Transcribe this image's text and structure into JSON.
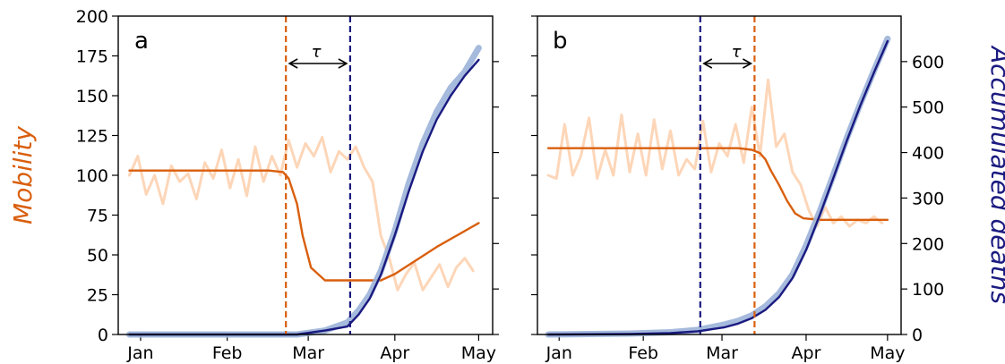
{
  "colors": {
    "mobility_raw": "#fdd2b0",
    "mobility_fit": "#d95f0e",
    "deaths_raw": "#9bb2d8",
    "deaths_fit": "#1a1a80",
    "tau_arrow": "#000000",
    "axis": "#000000"
  },
  "y_left_label": "Mobility",
  "y_right_label": "Accumulated deaths",
  "chart_data": [
    {
      "type": "line",
      "panel": "a",
      "panel_label": "a",
      "tau_label": "τ",
      "x_ticks": [
        "Jan",
        "Feb",
        "Mar",
        "Apr",
        "May"
      ],
      "xlim": [
        "Jan",
        "May"
      ],
      "ylim_mobility": [
        0,
        200
      ],
      "yticks_mobility": [
        0,
        25,
        50,
        75,
        100,
        125,
        150,
        175,
        200
      ],
      "mobility_change_date": "Feb 26",
      "deaths_onset_date": "Mar 21",
      "series": [
        {
          "name": "Mobility (data)",
          "axis": "left",
          "x": [
            0,
            3,
            6,
            9,
            12,
            15,
            18,
            21,
            24,
            27,
            30,
            33,
            36,
            39,
            42,
            45,
            48,
            51,
            54,
            57,
            60,
            63,
            66,
            69,
            72,
            75,
            78,
            81,
            84,
            87,
            90,
            93,
            96,
            99,
            102,
            105,
            108,
            111,
            114,
            117,
            120,
            123
          ],
          "values": [
            100,
            112,
            88,
            100,
            82,
            106,
            96,
            101,
            85,
            108,
            98,
            116,
            92,
            110,
            87,
            118,
            96,
            112,
            100,
            122,
            105,
            120,
            112,
            124,
            102,
            115,
            110,
            118,
            105,
            96,
            62,
            48,
            28,
            38,
            45,
            28,
            36,
            44,
            30,
            42,
            48,
            40
          ]
        },
        {
          "name": "Mobility (fit)",
          "axis": "left",
          "x": [
            0,
            40,
            50,
            55,
            57,
            60,
            62,
            65,
            70,
            80,
            90,
            95,
            110,
            125
          ],
          "values": [
            103,
            103,
            103,
            102,
            98,
            82,
            62,
            42,
            34,
            34,
            34,
            38,
            55,
            70
          ]
        },
        {
          "name": "Accumulated deaths (data)",
          "axis": "right",
          "x": [
            0,
            60,
            70,
            78,
            82,
            86,
            90,
            95,
            100,
            105,
            110,
            115,
            120,
            125
          ],
          "values": [
            0,
            0,
            1,
            3,
            6,
            10,
            16,
            26,
            38,
            48,
            56,
            62,
            66,
            72
          ]
        },
        {
          "name": "Accumulated deaths (fit)",
          "axis": "right",
          "x": [
            0,
            60,
            70,
            78,
            82,
            86,
            90,
            95,
            100,
            105,
            110,
            115,
            120,
            125
          ],
          "values": [
            0,
            0,
            1,
            2,
            5,
            9,
            15,
            25,
            36,
            46,
            54,
            60,
            65,
            69
          ]
        }
      ]
    },
    {
      "type": "line",
      "panel": "b",
      "panel_label": "b",
      "tau_label": "τ",
      "x_ticks": [
        "Jan",
        "Feb",
        "Mar",
        "Apr",
        "May"
      ],
      "xlim": [
        "Jan",
        "May"
      ],
      "ylim_deaths": [
        0,
        700
      ],
      "yticks_deaths": [
        0,
        100,
        200,
        300,
        400,
        500,
        600
      ],
      "deaths_onset_date": "Feb 26",
      "mobility_change_date": "Mar 18",
      "series": [
        {
          "name": "Mobility (data)",
          "axis": "left",
          "x": [
            0,
            3,
            6,
            9,
            12,
            15,
            18,
            21,
            24,
            27,
            30,
            33,
            36,
            39,
            42,
            45,
            48,
            51,
            54,
            57,
            60,
            63,
            66,
            69,
            72,
            75,
            78,
            81,
            84,
            87,
            90,
            93,
            96,
            99,
            102,
            105,
            108,
            111,
            114,
            117,
            120,
            123
          ],
          "values": [
            100,
            98,
            132,
            100,
            112,
            136,
            98,
            116,
            100,
            138,
            102,
            126,
            100,
            135,
            104,
            128,
            100,
            110,
            104,
            134,
            102,
            120,
            112,
            132,
            108,
            143,
            112,
            160,
            118,
            126,
            102,
            94,
            78,
            68,
            80,
            70,
            74,
            68,
            72,
            70,
            74,
            70
          ]
        },
        {
          "name": "Mobility (fit)",
          "axis": "left",
          "x": [
            0,
            60,
            70,
            75,
            78,
            80,
            82,
            85,
            88,
            91,
            94,
            100,
            125
          ],
          "values": [
            117,
            117,
            117,
            116,
            114,
            110,
            103,
            94,
            84,
            76,
            73,
            72,
            72
          ]
        },
        {
          "name": "Accumulated deaths (data)",
          "axis": "right",
          "x": [
            0,
            30,
            45,
            55,
            65,
            70,
            75,
            80,
            85,
            90,
            95,
            100,
            105,
            110,
            115,
            120,
            125
          ],
          "values": [
            0,
            2,
            5,
            10,
            22,
            30,
            42,
            62,
            90,
            132,
            196,
            270,
            350,
            432,
            508,
            580,
            650
          ]
        },
        {
          "name": "Accumulated deaths (fit)",
          "axis": "right",
          "x": [
            0,
            30,
            45,
            55,
            65,
            70,
            75,
            80,
            85,
            90,
            95,
            100,
            105,
            110,
            115,
            120,
            125
          ],
          "values": [
            0,
            1,
            3,
            7,
            16,
            24,
            36,
            54,
            82,
            124,
            186,
            262,
            344,
            426,
            504,
            576,
            645
          ]
        }
      ]
    }
  ]
}
